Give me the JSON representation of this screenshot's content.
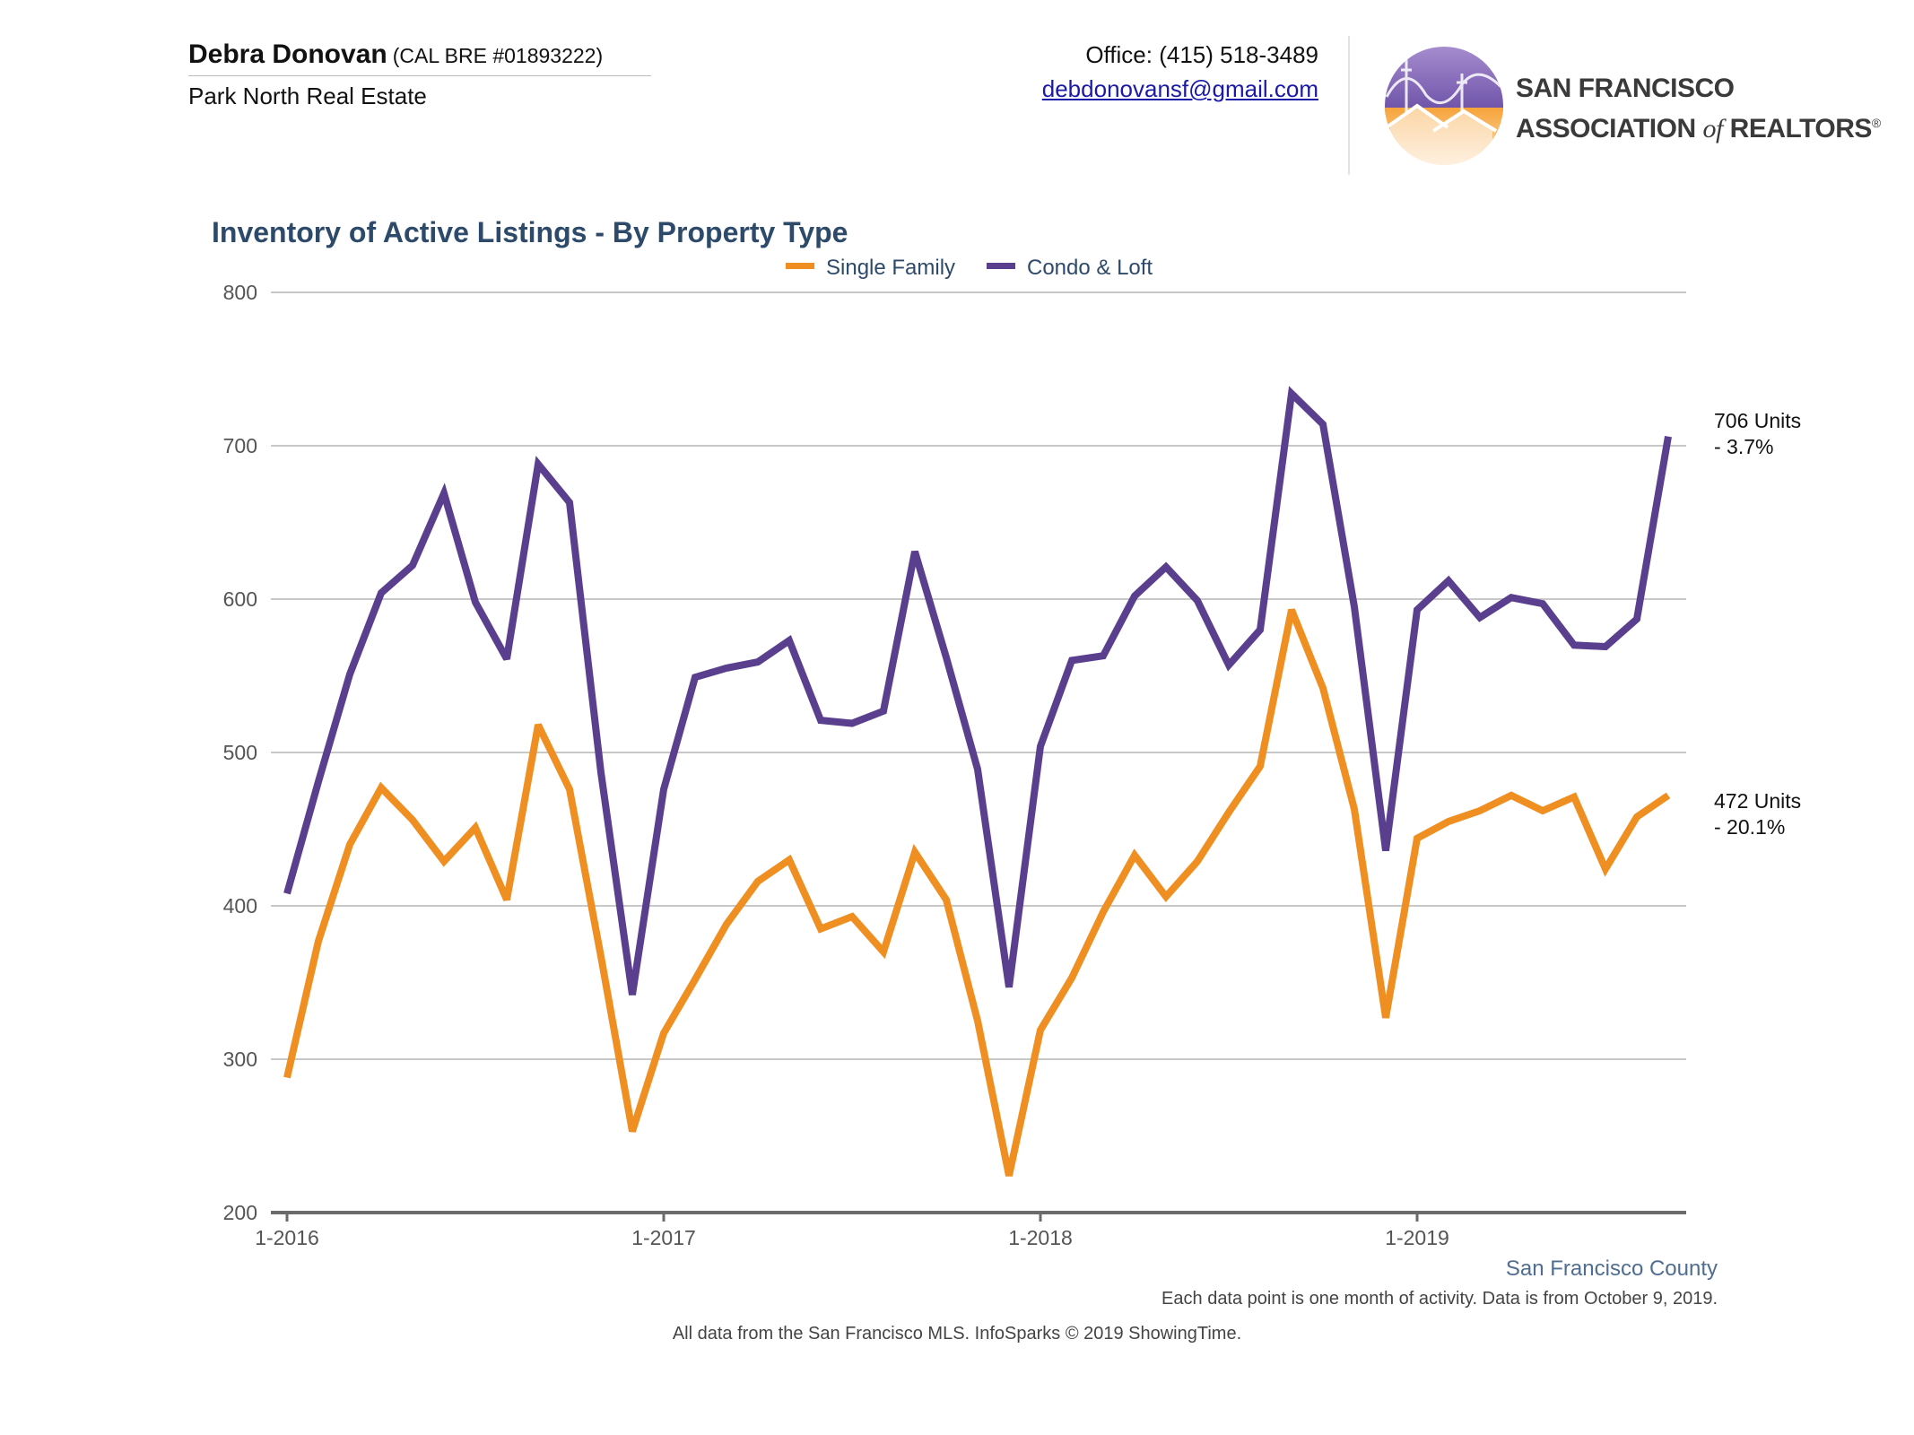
{
  "header": {
    "agent_name": "Debra Donovan",
    "agent_license": "(CAL BRE #01893222)",
    "brokerage": "Park North Real Estate",
    "office_phone": "Office: (415) 518-3489",
    "email": "debdonovansf@gmail.com",
    "logo_line1": "SAN FRANCISCO",
    "logo_line2_a": "ASSOCIATION",
    "logo_line2_of": "of",
    "logo_line2_b": "REALTORS",
    "logo_mark": "®"
  },
  "colors": {
    "single_family": "#ef8f22",
    "condo_loft": "#5b3f8f",
    "title": "#2d4a6b",
    "grid": "#c8c8c8"
  },
  "chart_data": {
    "type": "line",
    "title": "Inventory of Active Listings - By Property Type",
    "legend_position": "top-center",
    "grid": true,
    "ylim": [
      200,
      800
    ],
    "yticks": [
      200,
      300,
      400,
      500,
      600,
      700,
      800
    ],
    "xtick_labels": [
      "1-2016",
      "1-2017",
      "1-2018",
      "1-2019"
    ],
    "x": [
      "2016-01",
      "2016-02",
      "2016-03",
      "2016-04",
      "2016-05",
      "2016-06",
      "2016-07",
      "2016-08",
      "2016-09",
      "2016-10",
      "2016-11",
      "2016-12",
      "2017-01",
      "2017-02",
      "2017-03",
      "2017-04",
      "2017-05",
      "2017-06",
      "2017-07",
      "2017-08",
      "2017-09",
      "2017-10",
      "2017-11",
      "2017-12",
      "2018-01",
      "2018-02",
      "2018-03",
      "2018-04",
      "2018-05",
      "2018-06",
      "2018-07",
      "2018-08",
      "2018-09",
      "2018-10",
      "2018-11",
      "2018-12",
      "2019-01",
      "2019-02",
      "2019-03",
      "2019-04",
      "2019-05",
      "2019-06",
      "2019-07",
      "2019-08",
      "2019-09"
    ],
    "series": [
      {
        "name": "Single Family",
        "end_label_line1": "472 Units",
        "end_label_line2": "- 20.1%",
        "values": [
          288,
          377,
          440,
          477,
          456,
          429,
          451,
          404,
          518,
          476,
          367,
          253,
          317,
          352,
          388,
          416,
          430,
          385,
          393,
          370,
          435,
          404,
          325,
          224,
          319,
          353,
          396,
          433,
          406,
          429,
          461,
          491,
          593,
          542,
          463,
          327,
          444,
          455,
          462,
          472,
          462,
          471,
          424,
          458,
          472
        ]
      },
      {
        "name": "Condo & Loft",
        "end_label_line1": "706 Units",
        "end_label_line2": "- 3.7%",
        "values": [
          408,
          481,
          551,
          604,
          622,
          669,
          598,
          561,
          688,
          663,
          487,
          342,
          476,
          549,
          555,
          559,
          573,
          521,
          519,
          527,
          631,
          562,
          489,
          347,
          504,
          560,
          563,
          602,
          621,
          599,
          557,
          580,
          734,
          714,
          595,
          436,
          593,
          612,
          588,
          601,
          597,
          570,
          569,
          587,
          706
        ]
      }
    ]
  },
  "footer": {
    "region": "San Francisco County",
    "note": "Each data point is one month of activity. Data is from October 9, 2019.",
    "source": "All data from the San Francisco MLS. InfoSparks © 2019 ShowingTime."
  }
}
